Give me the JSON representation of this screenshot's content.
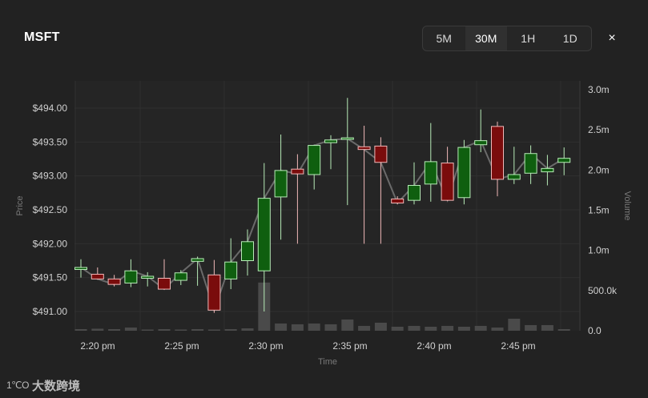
{
  "header": {
    "ticker": "MSFT",
    "timeframes": [
      {
        "label": "5M",
        "active": false
      },
      {
        "label": "30M",
        "active": true
      },
      {
        "label": "1H",
        "active": false
      },
      {
        "label": "1D",
        "active": false
      }
    ],
    "close_icon": "×"
  },
  "watermark": {
    "logo": "1℃O",
    "text": "大数跨境"
  },
  "chart_data": {
    "type": "candlestick",
    "title": "",
    "xlabel": "Time",
    "ylabel": "Price",
    "y2label": "Volume",
    "x_ticks": [
      "2:20 pm",
      "2:25 pm",
      "2:30 pm",
      "2:35 pm",
      "2:40 pm",
      "2:45 pm"
    ],
    "y_ticks": [
      "$491.00",
      "$491.50",
      "$492.00",
      "$492.50",
      "$493.00",
      "$493.50",
      "$494.00"
    ],
    "y_tick_values": [
      491.0,
      491.5,
      492.0,
      492.5,
      493.0,
      493.5,
      494.0
    ],
    "y2_ticks": [
      "0.0",
      "500.0k",
      "1.0m",
      "1.5m",
      "2.0m",
      "2.5m",
      "3.0m"
    ],
    "y2_tick_values": [
      0,
      500000,
      1000000,
      1500000,
      2000000,
      2500000,
      3000000
    ],
    "ylim": [
      490.85,
      495.05
    ],
    "y2lim": [
      0,
      3000000
    ],
    "grid": true,
    "colors": {
      "up": "#0f5f0f",
      "down": "#7a0c0c",
      "up_wick": "#b8ecb8",
      "down_wick": "#f0b8b8",
      "volume": "#4a4a4a",
      "close_line": "#6a6a6a"
    },
    "candles": [
      {
        "time": "2:19 pm",
        "open": 491.62,
        "high": 491.77,
        "low": 491.5,
        "close": 491.65,
        "volume": 20000
      },
      {
        "time": "2:20 pm",
        "open": 491.55,
        "high": 491.65,
        "low": 491.47,
        "close": 491.48,
        "volume": 25000
      },
      {
        "time": "2:21 pm",
        "open": 491.48,
        "high": 491.54,
        "low": 491.37,
        "close": 491.4,
        "volume": 20000
      },
      {
        "time": "2:22 pm",
        "open": 491.42,
        "high": 491.77,
        "low": 491.36,
        "close": 491.6,
        "volume": 40000
      },
      {
        "time": "2:23 pm",
        "open": 491.49,
        "high": 491.58,
        "low": 491.37,
        "close": 491.52,
        "volume": 15000
      },
      {
        "time": "2:24 pm",
        "open": 491.49,
        "high": 491.77,
        "low": 491.32,
        "close": 491.33,
        "volume": 20000
      },
      {
        "time": "2:25 pm",
        "open": 491.46,
        "high": 491.61,
        "low": 491.39,
        "close": 491.57,
        "volume": 15000
      },
      {
        "time": "2:26 pm",
        "open": 491.74,
        "high": 491.81,
        "low": 491.38,
        "close": 491.78,
        "volume": 20000
      },
      {
        "time": "2:27 pm",
        "open": 491.54,
        "high": 491.76,
        "low": 490.98,
        "close": 491.02,
        "volume": 15000
      },
      {
        "time": "2:28 pm",
        "open": 491.48,
        "high": 492.08,
        "low": 491.33,
        "close": 491.73,
        "volume": 20000
      },
      {
        "time": "2:29 pm",
        "open": 491.75,
        "high": 492.21,
        "low": 491.53,
        "close": 492.03,
        "volume": 30000
      },
      {
        "time": "2:30 pm",
        "open": 491.6,
        "high": 493.19,
        "low": 491.0,
        "close": 492.67,
        "volume": 600000
      },
      {
        "time": "2:31 pm",
        "open": 492.69,
        "high": 493.61,
        "low": 492.06,
        "close": 493.08,
        "volume": 90000
      },
      {
        "time": "2:32 pm",
        "open": 493.1,
        "high": 493.32,
        "low": 492.0,
        "close": 493.03,
        "volume": 80000
      },
      {
        "time": "2:33 pm",
        "open": 493.02,
        "high": 493.46,
        "low": 492.8,
        "close": 493.45,
        "volume": 90000
      },
      {
        "time": "2:34 pm",
        "open": 493.49,
        "high": 493.6,
        "low": 493.1,
        "close": 493.53,
        "volume": 80000
      },
      {
        "time": "2:35 pm",
        "open": 493.54,
        "high": 494.15,
        "low": 492.57,
        "close": 493.55,
        "volume": 140000
      },
      {
        "time": "2:36 pm",
        "open": 493.43,
        "high": 493.74,
        "low": 492.0,
        "close": 493.39,
        "volume": 60000
      },
      {
        "time": "2:37 pm",
        "open": 493.44,
        "high": 493.57,
        "low": 492.0,
        "close": 493.2,
        "volume": 100000
      },
      {
        "time": "2:38 pm",
        "open": 492.66,
        "high": 492.7,
        "low": 492.58,
        "close": 492.6,
        "volume": 50000
      },
      {
        "time": "2:39 pm",
        "open": 492.64,
        "high": 493.2,
        "low": 492.58,
        "close": 492.86,
        "volume": 60000
      },
      {
        "time": "2:40 pm",
        "open": 492.88,
        "high": 493.78,
        "low": 492.62,
        "close": 493.21,
        "volume": 50000
      },
      {
        "time": "2:41 pm",
        "open": 493.19,
        "high": 493.43,
        "low": 492.63,
        "close": 492.64,
        "volume": 60000
      },
      {
        "time": "2:42 pm",
        "open": 492.68,
        "high": 493.53,
        "low": 492.58,
        "close": 493.42,
        "volume": 50000
      },
      {
        "time": "2:43 pm",
        "open": 493.46,
        "high": 493.98,
        "low": 493.35,
        "close": 493.52,
        "volume": 60000
      },
      {
        "time": "2:44 pm",
        "open": 493.73,
        "high": 493.8,
        "low": 492.7,
        "close": 492.95,
        "volume": 40000
      },
      {
        "time": "2:45 pm",
        "open": 492.95,
        "high": 493.43,
        "low": 492.88,
        "close": 493.02,
        "volume": 150000
      },
      {
        "time": "2:46 pm",
        "open": 493.04,
        "high": 493.45,
        "low": 492.88,
        "close": 493.33,
        "volume": 70000
      },
      {
        "time": "2:47 pm",
        "open": 493.06,
        "high": 493.31,
        "low": 492.86,
        "close": 493.11,
        "volume": 70000
      },
      {
        "time": "2:48 pm",
        "open": 493.2,
        "high": 493.42,
        "low": 493.01,
        "close": 493.26,
        "volume": 20000
      }
    ]
  }
}
